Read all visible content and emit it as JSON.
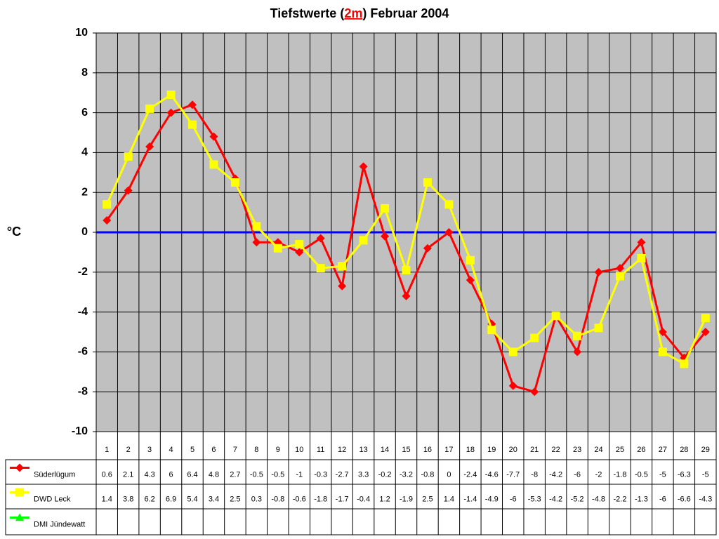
{
  "chart_data": {
    "type": "line",
    "title": [
      "Tiefstwerte (",
      "2m",
      ") Februar 2004"
    ],
    "ylabel": "°C",
    "categories": [
      1,
      2,
      3,
      4,
      5,
      6,
      7,
      8,
      9,
      10,
      11,
      12,
      13,
      14,
      15,
      16,
      17,
      18,
      19,
      20,
      21,
      22,
      23,
      24,
      25,
      26,
      27,
      28,
      29
    ],
    "series": [
      {
        "name": "Süderlügum",
        "color": "#ff0000",
        "marker": "diamond",
        "values": [
          0.6,
          2.1,
          4.3,
          6,
          6.4,
          4.8,
          2.7,
          -0.5,
          -0.5,
          -1,
          -0.3,
          -2.7,
          3.3,
          -0.2,
          -3.2,
          -0.8,
          0,
          -2.4,
          -4.6,
          -7.7,
          -8,
          -4.2,
          -6,
          -2,
          -1.8,
          -0.5,
          -5,
          -6.3,
          -5
        ]
      },
      {
        "name": "DWD Leck",
        "color": "#ffff00",
        "marker": "square",
        "values": [
          1.4,
          3.8,
          6.2,
          6.9,
          5.4,
          3.4,
          2.5,
          0.3,
          -0.8,
          -0.6,
          -1.8,
          -1.7,
          -0.4,
          1.2,
          -1.9,
          2.5,
          1.4,
          -1.4,
          -4.9,
          -6,
          -5.3,
          -4.2,
          -5.2,
          -4.8,
          -2.2,
          -1.3,
          -6,
          -6.6,
          -4.3
        ]
      },
      {
        "name": "DMI Jündewatt",
        "color": "#00ff00",
        "marker": "triangle",
        "values": [
          null,
          null,
          null,
          null,
          null,
          null,
          null,
          null,
          null,
          null,
          null,
          null,
          null,
          null,
          null,
          null,
          null,
          null,
          null,
          null,
          null,
          null,
          null,
          null,
          null,
          null,
          null,
          null,
          null
        ]
      }
    ],
    "ylim": [
      -10,
      10
    ],
    "yticks": [
      -10,
      -8,
      -6,
      -4,
      -2,
      0,
      2,
      4,
      6,
      8,
      10
    ],
    "grid": true,
    "plot_background": "#c0c0c0",
    "zero_line_color": "#0000ff"
  }
}
